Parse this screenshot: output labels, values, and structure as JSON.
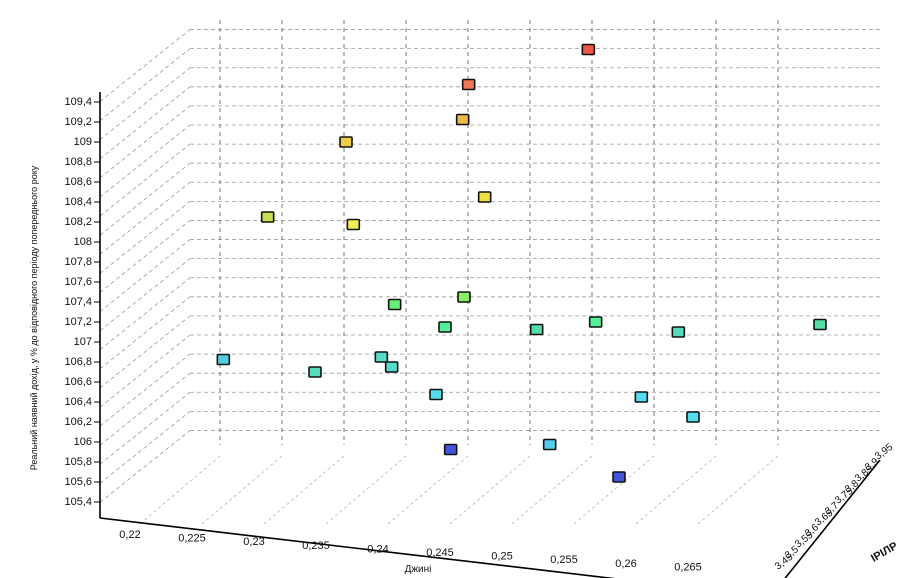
{
  "chart_data": {
    "type": "scatter",
    "dimensions": 3,
    "xlabel": "Джині",
    "ylabel": "Реальний наявний дохід, у % до відповідного періоду попереднього року",
    "zlabel": "ІРІЛР",
    "x_ticks": [
      "0,22",
      "0,225",
      "0,23",
      "0,235",
      "0,24",
      "0,245",
      "0,25",
      "0,255",
      "0,26",
      "0,265"
    ],
    "y_ticks": [
      "105,4",
      "105,6",
      "105,8",
      "106",
      "106,2",
      "106,4",
      "106,6",
      "106,8",
      "107",
      "107,2",
      "107,4",
      "107,6",
      "107,8",
      "108",
      "108,2",
      "108,4",
      "108,6",
      "108,8",
      "109",
      "109,2",
      "109,4"
    ],
    "z_ticks": [
      "3,45",
      "3,5",
      "3,55",
      "3,6",
      "3,65",
      "3,7",
      "3,75",
      "3,8",
      "3,85",
      "3,9",
      "3,95"
    ],
    "ylim": [
      105.3,
      109.5
    ],
    "grid": true,
    "points": [
      {
        "gini": 0.244,
        "income": 109.7,
        "z": 3.9,
        "color": "#ee5544"
      },
      {
        "gini": 0.233,
        "income": 109.4,
        "z": 3.8,
        "color": "#ee7755"
      },
      {
        "gini": 0.233,
        "income": 109.1,
        "z": 3.7,
        "color": "#eebb44"
      },
      {
        "gini": 0.222,
        "income": 108.9,
        "z": 3.65,
        "color": "#eecc44"
      },
      {
        "gini": 0.236,
        "income": 108.4,
        "z": 3.55,
        "color": "#eedd44"
      },
      {
        "gini": 0.215,
        "income": 108.2,
        "z": 3.55,
        "color": "#ccdd55"
      },
      {
        "gini": 0.223,
        "income": 108.1,
        "z": 3.6,
        "color": "#eeee55"
      },
      {
        "gini": 0.234,
        "income": 107.4,
        "z": 3.55,
        "color": "#88ee66"
      },
      {
        "gini": 0.227,
        "income": 107.3,
        "z": 3.6,
        "color": "#66ee77"
      },
      {
        "gini": 0.231,
        "income": 107.0,
        "z": 3.75,
        "color": "#55ee99"
      },
      {
        "gini": 0.239,
        "income": 106.9,
        "z": 3.9,
        "color": "#55ddaa"
      },
      {
        "gini": 0.245,
        "income": 107.0,
        "z": 3.85,
        "color": "#55ee99"
      },
      {
        "gini": 0.267,
        "income": 107.0,
        "z": 3.8,
        "color": "#55ddaa"
      },
      {
        "gini": 0.253,
        "income": 106.9,
        "z": 3.85,
        "color": "#55ddbb"
      },
      {
        "gini": 0.226,
        "income": 106.8,
        "z": 3.55,
        "color": "#55ddcc"
      },
      {
        "gini": 0.219,
        "income": 106.6,
        "z": 3.65,
        "color": "#55ddbb"
      },
      {
        "gini": 0.227,
        "income": 106.7,
        "z": 3.55,
        "color": "#55ddcc"
      },
      {
        "gini": 0.211,
        "income": 106.8,
        "z": 3.5,
        "color": "#55ccdd"
      },
      {
        "gini": 0.231,
        "income": 106.4,
        "z": 3.6,
        "color": "#55ddee"
      },
      {
        "gini": 0.25,
        "income": 106.3,
        "z": 3.75,
        "color": "#55ddee"
      },
      {
        "gini": 0.255,
        "income": 106.1,
        "z": 3.75,
        "color": "#55ddee"
      },
      {
        "gini": 0.242,
        "income": 105.9,
        "z": 3.6,
        "color": "#55ccee"
      },
      {
        "gini": 0.233,
        "income": 105.9,
        "z": 3.5,
        "color": "#4455dd"
      },
      {
        "gini": 0.249,
        "income": 105.6,
        "z": 3.55,
        "color": "#4455dd"
      }
    ]
  }
}
